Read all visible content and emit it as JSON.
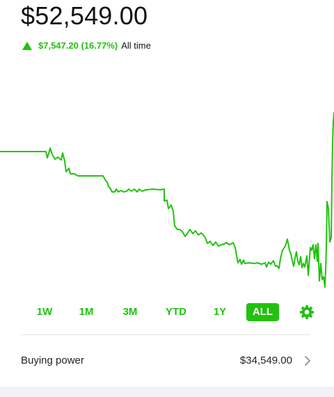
{
  "portfolio": {
    "value": "$52,549.00",
    "change_amount": "$7,547.20 (16.77%)",
    "change_period": "All time",
    "accent_color": "#21c20e",
    "change_direction_icon": "triangle-up-icon"
  },
  "ranges": {
    "items": [
      "1W",
      "1M",
      "3M",
      "YTD",
      "1Y",
      "ALL"
    ],
    "selected": "ALL",
    "settings_icon": "gear-icon"
  },
  "buying_power": {
    "label": "Buying power",
    "value": "$34,549.00",
    "icon": "chevron-right-icon"
  }
}
